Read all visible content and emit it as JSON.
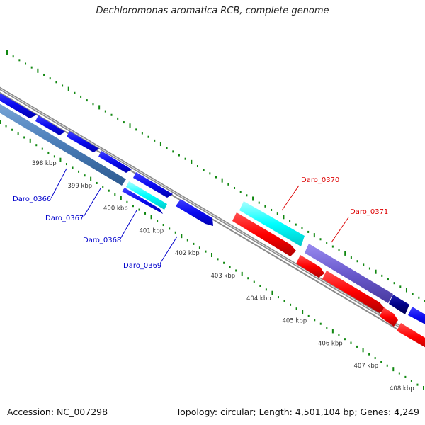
{
  "title": "Dechloromonas aromatica RCB, complete genome",
  "footer": {
    "accession": "Accession: NC_007298",
    "summary": "Topology: circular; Length: 4,501,104 bp; Genes: 4,249"
  },
  "kbp_ticks": [
    "398 kbp",
    "399 kbp",
    "400 kbp",
    "401 kbp",
    "402 kbp",
    "403 kbp",
    "404 kbp",
    "405 kbp",
    "406 kbp",
    "407 kbp",
    "408 kbp"
  ],
  "gene_labels": [
    {
      "name": "Daro_0366",
      "color": "#0000cc"
    },
    {
      "name": "Daro_0367",
      "color": "#0000cc"
    },
    {
      "name": "Daro_0368",
      "color": "#0000cc"
    },
    {
      "name": "Daro_0369",
      "color": "#0000cc"
    },
    {
      "name": "Daro_0370",
      "color": "#dd0000"
    },
    {
      "name": "Daro_0371",
      "color": "#dd0000"
    }
  ],
  "colors": {
    "backbone": "#8a8a8a",
    "dots": "#118811",
    "blue": "#0a0af0",
    "steel_blue": "#4a7db8",
    "cyan": "#00ffff",
    "red": "#ff0000",
    "slate_blue": "#6a5acd",
    "navy": "#000088"
  }
}
